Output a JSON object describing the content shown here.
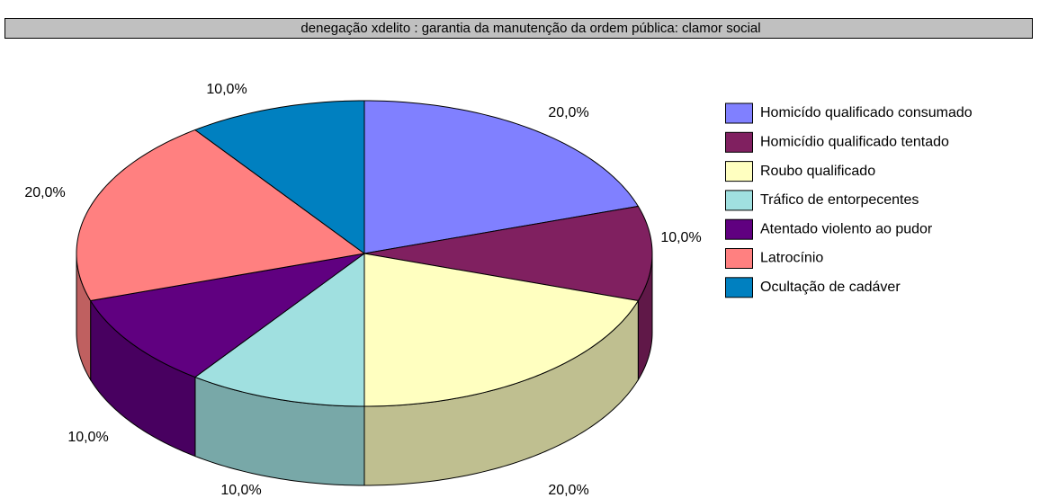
{
  "chart_data": {
    "type": "pie",
    "title": "denegação xdelito : garantia da manutenção da ordem pública: clamor social",
    "categories": [
      "Homicído qualificado consumado",
      "Homicídio qualificado tentado",
      "Roubo qualificado",
      "Tráfico de entorpecentes",
      "Atentado violento ao pudor",
      "Latrocínio",
      "Ocultação de cadáver"
    ],
    "values": [
      20,
      10,
      20,
      10,
      10,
      20,
      10
    ],
    "value_labels": [
      "20,0%",
      "10,0%",
      "20,0%",
      "10,0%",
      "10,0%",
      "20,0%",
      "10,0%"
    ],
    "colors": [
      "#8080ff",
      "#802060",
      "#ffffc0",
      "#a0e0e0",
      "#600080",
      "#ff8080",
      "#0080c0"
    ],
    "legend": "right"
  }
}
